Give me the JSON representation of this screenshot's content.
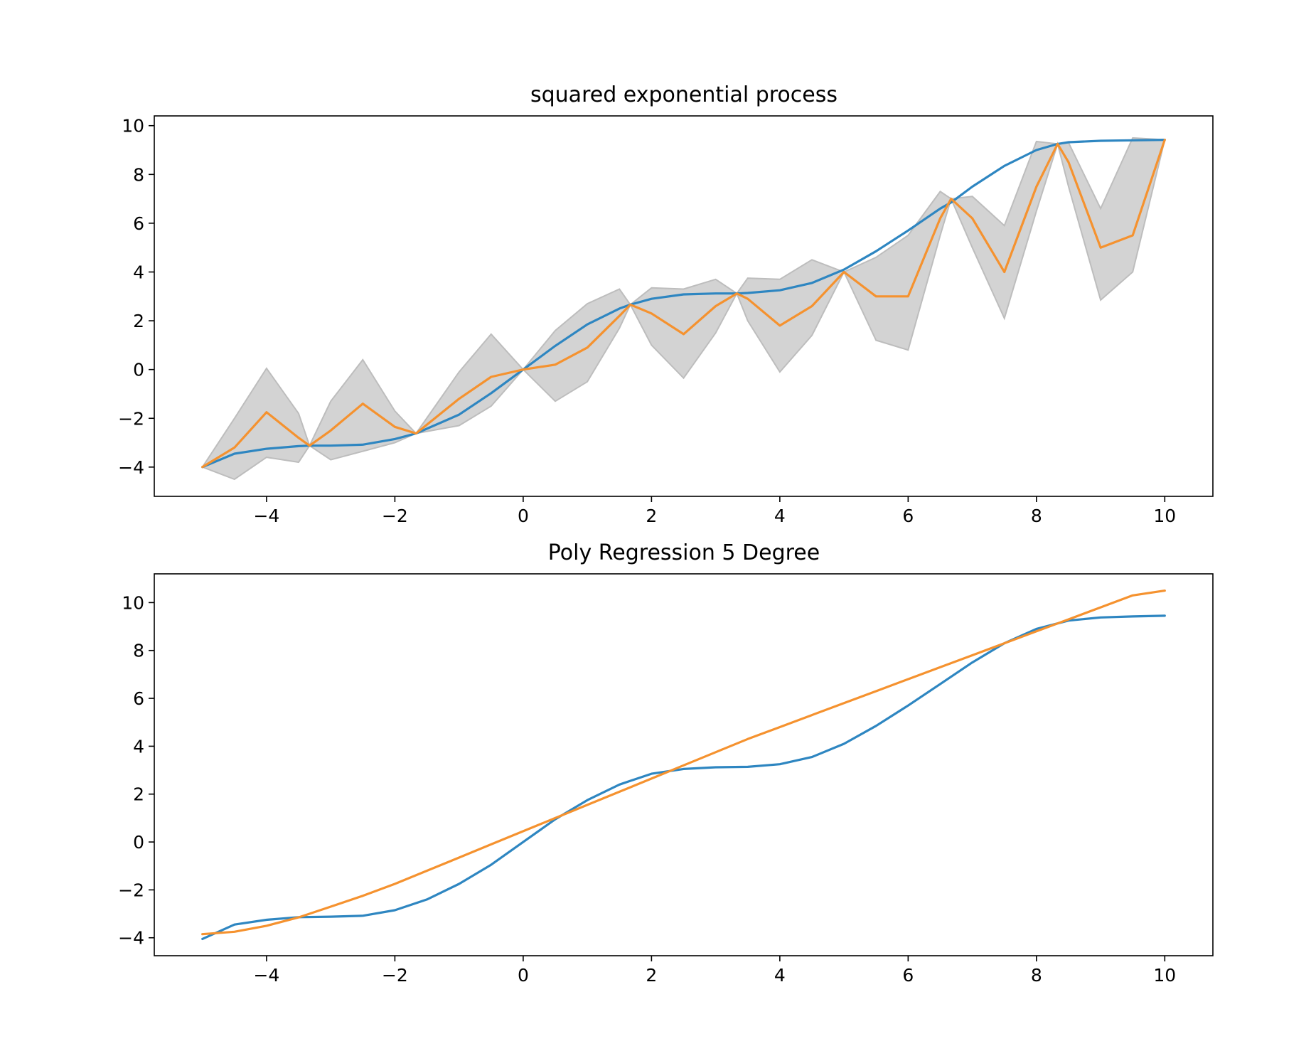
{
  "chart_data": [
    {
      "type": "line",
      "title": "squared exponential process",
      "xlabel": "",
      "ylabel": "",
      "xlim": [
        -5.75,
        10.75
      ],
      "ylim": [
        -5.2,
        10.4
      ],
      "xticks": [
        -4,
        -2,
        0,
        2,
        4,
        6,
        8,
        10
      ],
      "yticks": [
        -4,
        -2,
        0,
        2,
        4,
        6,
        8,
        10
      ],
      "xtick_labels": [
        "−4",
        "−2",
        "0",
        "2",
        "4",
        "6",
        "8",
        "10"
      ],
      "ytick_labels": [
        "−4",
        "−2",
        "0",
        "2",
        "4",
        "6",
        "8",
        "10"
      ],
      "grid": false,
      "colors": {
        "true_function": "#2e86c1",
        "prediction": "#f5922f",
        "band": "#d3d3d3"
      },
      "x": [
        -5.0,
        -4.5,
        -4.0,
        -3.5,
        -3.33,
        -3.0,
        -2.5,
        -2.0,
        -1.67,
        -1.0,
        -0.5,
        0.0,
        0.5,
        1.0,
        1.5,
        1.67,
        2.0,
        2.5,
        3.0,
        3.33,
        3.5,
        4.0,
        4.5,
        5.0,
        5.5,
        6.0,
        6.5,
        6.67,
        7.0,
        7.5,
        8.0,
        8.33,
        8.5,
        9.0,
        9.5,
        10.0
      ],
      "series": [
        {
          "key": "true_function",
          "values": [
            -4.0,
            -3.45,
            -3.25,
            -3.14,
            -3.12,
            -3.12,
            -3.08,
            -2.85,
            -2.62,
            -1.85,
            -0.97,
            0.0,
            0.97,
            1.85,
            2.5,
            2.66,
            2.9,
            3.08,
            3.12,
            3.12,
            3.14,
            3.25,
            3.55,
            4.1,
            4.85,
            5.7,
            6.6,
            6.85,
            7.5,
            8.35,
            9.0,
            9.25,
            9.32,
            9.38,
            9.4,
            9.42
          ]
        },
        {
          "key": "prediction",
          "values": [
            -4.0,
            -3.2,
            -1.75,
            -2.8,
            -3.12,
            -2.5,
            -1.4,
            -2.35,
            -2.62,
            -1.2,
            -0.3,
            0.0,
            0.2,
            0.9,
            2.2,
            2.66,
            2.3,
            1.45,
            2.6,
            3.12,
            2.9,
            1.8,
            2.6,
            4.0,
            3.0,
            3.0,
            6.2,
            7.0,
            6.2,
            4.0,
            7.5,
            9.25,
            8.5,
            5.0,
            5.5,
            9.42
          ]
        }
      ],
      "band": {
        "key": "band",
        "lower": [
          -4.0,
          -4.5,
          -3.6,
          -3.8,
          -3.12,
          -3.7,
          -3.35,
          -3.0,
          -2.62,
          -2.3,
          -1.5,
          0.0,
          -1.3,
          -0.5,
          1.7,
          2.66,
          1.0,
          -0.35,
          1.5,
          3.12,
          2.0,
          -0.1,
          1.4,
          4.0,
          1.2,
          0.8,
          5.5,
          7.0,
          5.0,
          2.1,
          6.5,
          9.25,
          7.5,
          2.85,
          4.0,
          9.42
        ],
        "upper": [
          -4.0,
          -2.0,
          0.05,
          -1.8,
          -3.12,
          -1.3,
          0.4,
          -1.7,
          -2.62,
          -0.1,
          1.45,
          0.0,
          1.6,
          2.7,
          3.3,
          2.66,
          3.35,
          3.3,
          3.7,
          3.12,
          3.75,
          3.7,
          4.5,
          4.0,
          4.6,
          5.5,
          7.3,
          7.0,
          7.1,
          5.9,
          9.35,
          9.25,
          9.3,
          6.6,
          9.5,
          9.42
        ]
      }
    },
    {
      "type": "line",
      "title": "Poly Regression 5 Degree",
      "xlabel": "",
      "ylabel": "",
      "xlim": [
        -5.75,
        10.75
      ],
      "ylim": [
        -4.75,
        11.2
      ],
      "xticks": [
        -4,
        -2,
        0,
        2,
        4,
        6,
        8,
        10
      ],
      "yticks": [
        -4,
        -2,
        0,
        2,
        4,
        6,
        8,
        10
      ],
      "xtick_labels": [
        "−4",
        "−2",
        "0",
        "2",
        "4",
        "6",
        "8",
        "10"
      ],
      "ytick_labels": [
        "−4",
        "−2",
        "0",
        "2",
        "4",
        "6",
        "8",
        "10"
      ],
      "grid": false,
      "colors": {
        "true_function": "#2e86c1",
        "prediction": "#f5922f"
      },
      "x": [
        -5.0,
        -4.5,
        -4.0,
        -3.5,
        -3.0,
        -2.5,
        -2.0,
        -1.5,
        -1.0,
        -0.5,
        0.0,
        0.5,
        1.0,
        1.5,
        2.0,
        2.5,
        3.0,
        3.5,
        4.0,
        4.5,
        5.0,
        5.5,
        6.0,
        6.5,
        7.0,
        7.5,
        8.0,
        8.5,
        9.0,
        9.5,
        10.0
      ],
      "series": [
        {
          "key": "true_function",
          "values": [
            -4.05,
            -3.45,
            -3.25,
            -3.14,
            -3.12,
            -3.08,
            -2.85,
            -2.4,
            -1.75,
            -0.95,
            0.0,
            0.95,
            1.75,
            2.4,
            2.85,
            3.05,
            3.12,
            3.14,
            3.25,
            3.55,
            4.1,
            4.85,
            5.7,
            6.6,
            7.5,
            8.3,
            8.9,
            9.25,
            9.38,
            9.42,
            9.45
          ]
        },
        {
          "key": "prediction",
          "values": [
            -3.85,
            -3.75,
            -3.5,
            -3.15,
            -2.7,
            -2.25,
            -1.75,
            -1.2,
            -0.65,
            -0.1,
            0.45,
            1.0,
            1.55,
            2.1,
            2.65,
            3.2,
            3.75,
            4.3,
            4.8,
            5.3,
            5.8,
            6.3,
            6.8,
            7.3,
            7.8,
            8.3,
            8.8,
            9.3,
            9.8,
            10.3,
            10.5
          ]
        }
      ]
    }
  ]
}
